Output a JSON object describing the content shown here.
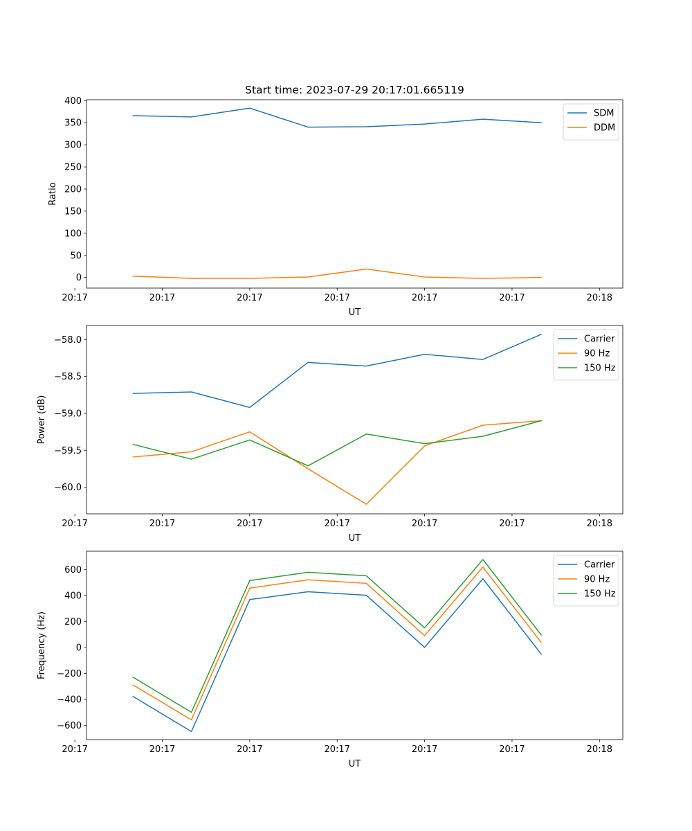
{
  "figure": {
    "title": "Start time: 2023-07-29 20:17:01.665119"
  },
  "chart_data": [
    {
      "type": "line",
      "title": "Start time: 2023-07-29 20:17:01.665119",
      "xlabel": "UT",
      "ylabel": "Ratio",
      "x": [
        1,
        2,
        3,
        4,
        5,
        6,
        7,
        8
      ],
      "xlim": [
        0.2,
        9.4
      ],
      "x_ticks": [
        0,
        1.5,
        3,
        4.5,
        6,
        7.5,
        9
      ],
      "x_tick_labels": [
        "20:17",
        "20:17",
        "20:17",
        "20:17",
        "20:17",
        "20:17",
        "20:18"
      ],
      "ylim": [
        -24,
        402
      ],
      "y_ticks": [
        0,
        50,
        100,
        150,
        200,
        250,
        300,
        350,
        400
      ],
      "y_tick_labels": [
        "0",
        "50",
        "100",
        "150",
        "200",
        "250",
        "300",
        "350",
        "400"
      ],
      "grid": false,
      "legend": "top-right",
      "series": [
        {
          "name": "SDM",
          "color": "#1f77b4",
          "values": [
            366,
            363,
            383,
            340,
            341,
            347,
            358,
            350
          ]
        },
        {
          "name": "DDM",
          "color": "#ff7f0e",
          "values": [
            3,
            -2,
            -2,
            1,
            19,
            1,
            -2,
            0
          ]
        }
      ]
    },
    {
      "type": "line",
      "title": "",
      "xlabel": "UT",
      "ylabel": "Power (dB)",
      "x": [
        1,
        2,
        3,
        4,
        5,
        6,
        7,
        8
      ],
      "xlim": [
        0.2,
        9.4
      ],
      "x_ticks": [
        0,
        1.5,
        3,
        4.5,
        6,
        7.5,
        9
      ],
      "x_tick_labels": [
        "20:17",
        "20:17",
        "20:17",
        "20:17",
        "20:17",
        "20:17",
        "20:18"
      ],
      "ylim": [
        -60.36,
        -57.81
      ],
      "y_ticks": [
        -60.0,
        -59.5,
        -59.0,
        -58.5,
        -58.0
      ],
      "y_tick_labels": [
        "−60.0",
        "−59.5",
        "−59.0",
        "−58.5",
        "−58.0"
      ],
      "grid": false,
      "legend": "top-right",
      "series": [
        {
          "name": "Carrier",
          "color": "#1f77b4",
          "values": [
            -58.73,
            -58.71,
            -58.92,
            -58.31,
            -58.36,
            -58.2,
            -58.27,
            -57.93
          ]
        },
        {
          "name": "90 Hz",
          "color": "#ff7f0e",
          "values": [
            -59.59,
            -59.52,
            -59.25,
            -59.75,
            -60.23,
            -59.44,
            -59.16,
            -59.1
          ]
        },
        {
          "name": "150 Hz",
          "color": "#2ca02c",
          "values": [
            -59.42,
            -59.62,
            -59.36,
            -59.71,
            -59.28,
            -59.41,
            -59.31,
            -59.1
          ]
        }
      ]
    },
    {
      "type": "line",
      "title": "",
      "xlabel": "UT",
      "ylabel": "Frequency (Hz)",
      "x": [
        1,
        2,
        3,
        4,
        5,
        6,
        7,
        8
      ],
      "xlim": [
        0.2,
        9.4
      ],
      "x_ticks": [
        0,
        1.5,
        3,
        4.5,
        6,
        7.5,
        9
      ],
      "x_tick_labels": [
        "20:17",
        "20:17",
        "20:17",
        "20:17",
        "20:17",
        "20:17",
        "20:18"
      ],
      "ylim": [
        -710,
        740
      ],
      "y_ticks": [
        -600,
        -400,
        -200,
        0,
        200,
        400,
        600
      ],
      "y_tick_labels": [
        "−600",
        "−400",
        "−200",
        "0",
        "200",
        "400",
        "600"
      ],
      "grid": false,
      "legend": "top-right",
      "series": [
        {
          "name": "Carrier",
          "color": "#1f77b4",
          "values": [
            -378,
            -648,
            368,
            428,
            401,
            0,
            528,
            -52
          ]
        },
        {
          "name": "90 Hz",
          "color": "#ff7f0e",
          "values": [
            -290,
            -558,
            456,
            520,
            493,
            90,
            618,
            38
          ]
        },
        {
          "name": "150 Hz",
          "color": "#2ca02c",
          "values": [
            -230,
            -500,
            514,
            578,
            551,
            150,
            676,
            96
          ]
        }
      ]
    }
  ]
}
